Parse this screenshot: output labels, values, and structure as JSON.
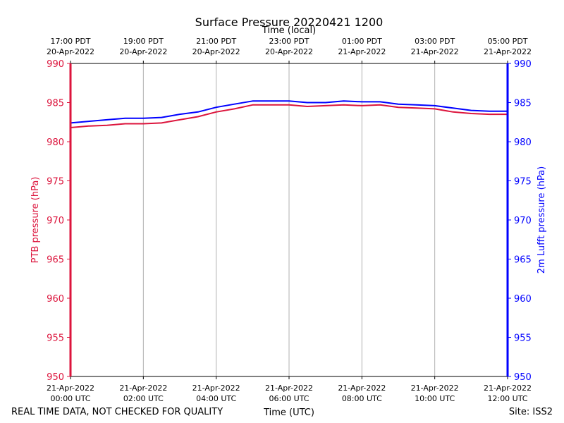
{
  "chart_data": {
    "type": "line",
    "title": "Surface Pressure 20220421 1200",
    "xlabel_bottom": "Time (UTC)",
    "xlabel_top": "Time (local)",
    "ylabel_left": "PTB pressure (hPa)",
    "ylabel_right": "2m Lufft pressure (hPa)",
    "ylim": [
      950,
      990
    ],
    "yticks": [
      950,
      955,
      960,
      965,
      970,
      975,
      980,
      985,
      990
    ],
    "xlim": [
      0,
      12
    ],
    "grid_x": true,
    "grid_y": false,
    "bottom_ticks": [
      {
        "x": 0,
        "date": "21-Apr-2022",
        "time": "00:00 UTC"
      },
      {
        "x": 2,
        "date": "21-Apr-2022",
        "time": "02:00 UTC"
      },
      {
        "x": 4,
        "date": "21-Apr-2022",
        "time": "04:00 UTC"
      },
      {
        "x": 6,
        "date": "21-Apr-2022",
        "time": "06:00 UTC"
      },
      {
        "x": 8,
        "date": "21-Apr-2022",
        "time": "08:00 UTC"
      },
      {
        "x": 10,
        "date": "21-Apr-2022",
        "time": "10:00 UTC"
      },
      {
        "x": 12,
        "date": "21-Apr-2022",
        "time": "12:00 UTC"
      }
    ],
    "top_ticks": [
      {
        "x": 0,
        "time": "17:00 PDT",
        "date": "20-Apr-2022"
      },
      {
        "x": 2,
        "time": "19:00 PDT",
        "date": "20-Apr-2022"
      },
      {
        "x": 4,
        "time": "21:00 PDT",
        "date": "20-Apr-2022"
      },
      {
        "x": 6,
        "time": "23:00 PDT",
        "date": "20-Apr-2022"
      },
      {
        "x": 8,
        "time": "01:00 PDT",
        "date": "21-Apr-2022"
      },
      {
        "x": 10,
        "time": "03:00 PDT",
        "date": "21-Apr-2022"
      },
      {
        "x": 12,
        "time": "05:00 PDT",
        "date": "21-Apr-2022"
      }
    ],
    "series": [
      {
        "name": "PTB pressure (hPa)",
        "color": "#dc143c",
        "x": [
          0,
          0.5,
          1,
          1.5,
          2,
          2.5,
          3,
          3.5,
          4,
          4.5,
          5,
          5.5,
          6,
          6.5,
          7,
          7.5,
          8,
          8.5,
          9,
          9.5,
          10,
          10.5,
          11,
          11.5,
          12
        ],
        "values": [
          981.8,
          982.0,
          982.1,
          982.3,
          982.3,
          982.4,
          982.8,
          983.2,
          983.8,
          984.2,
          984.7,
          984.7,
          984.7,
          984.5,
          984.6,
          984.7,
          984.6,
          984.7,
          984.4,
          984.3,
          984.2,
          983.8,
          983.6,
          983.5,
          983.5
        ]
      },
      {
        "name": "2m Lufft pressure (hPa)",
        "color": "#0000ff",
        "x": [
          0,
          0.5,
          1,
          1.5,
          2,
          2.5,
          3,
          3.5,
          4,
          4.5,
          5,
          5.5,
          6,
          6.5,
          7,
          7.5,
          8,
          8.5,
          9,
          9.5,
          10,
          10.5,
          11,
          11.5,
          12
        ],
        "values": [
          982.4,
          982.6,
          982.8,
          983.0,
          983.0,
          983.1,
          983.5,
          983.8,
          984.4,
          984.8,
          985.2,
          985.2,
          985.2,
          985.0,
          985.0,
          985.2,
          985.1,
          985.1,
          984.8,
          984.7,
          984.6,
          984.3,
          984.0,
          983.9,
          983.9
        ]
      }
    ]
  },
  "footer": {
    "left": "REAL TIME DATA, NOT CHECKED FOR QUALITY",
    "right": "Site: ISS2"
  }
}
